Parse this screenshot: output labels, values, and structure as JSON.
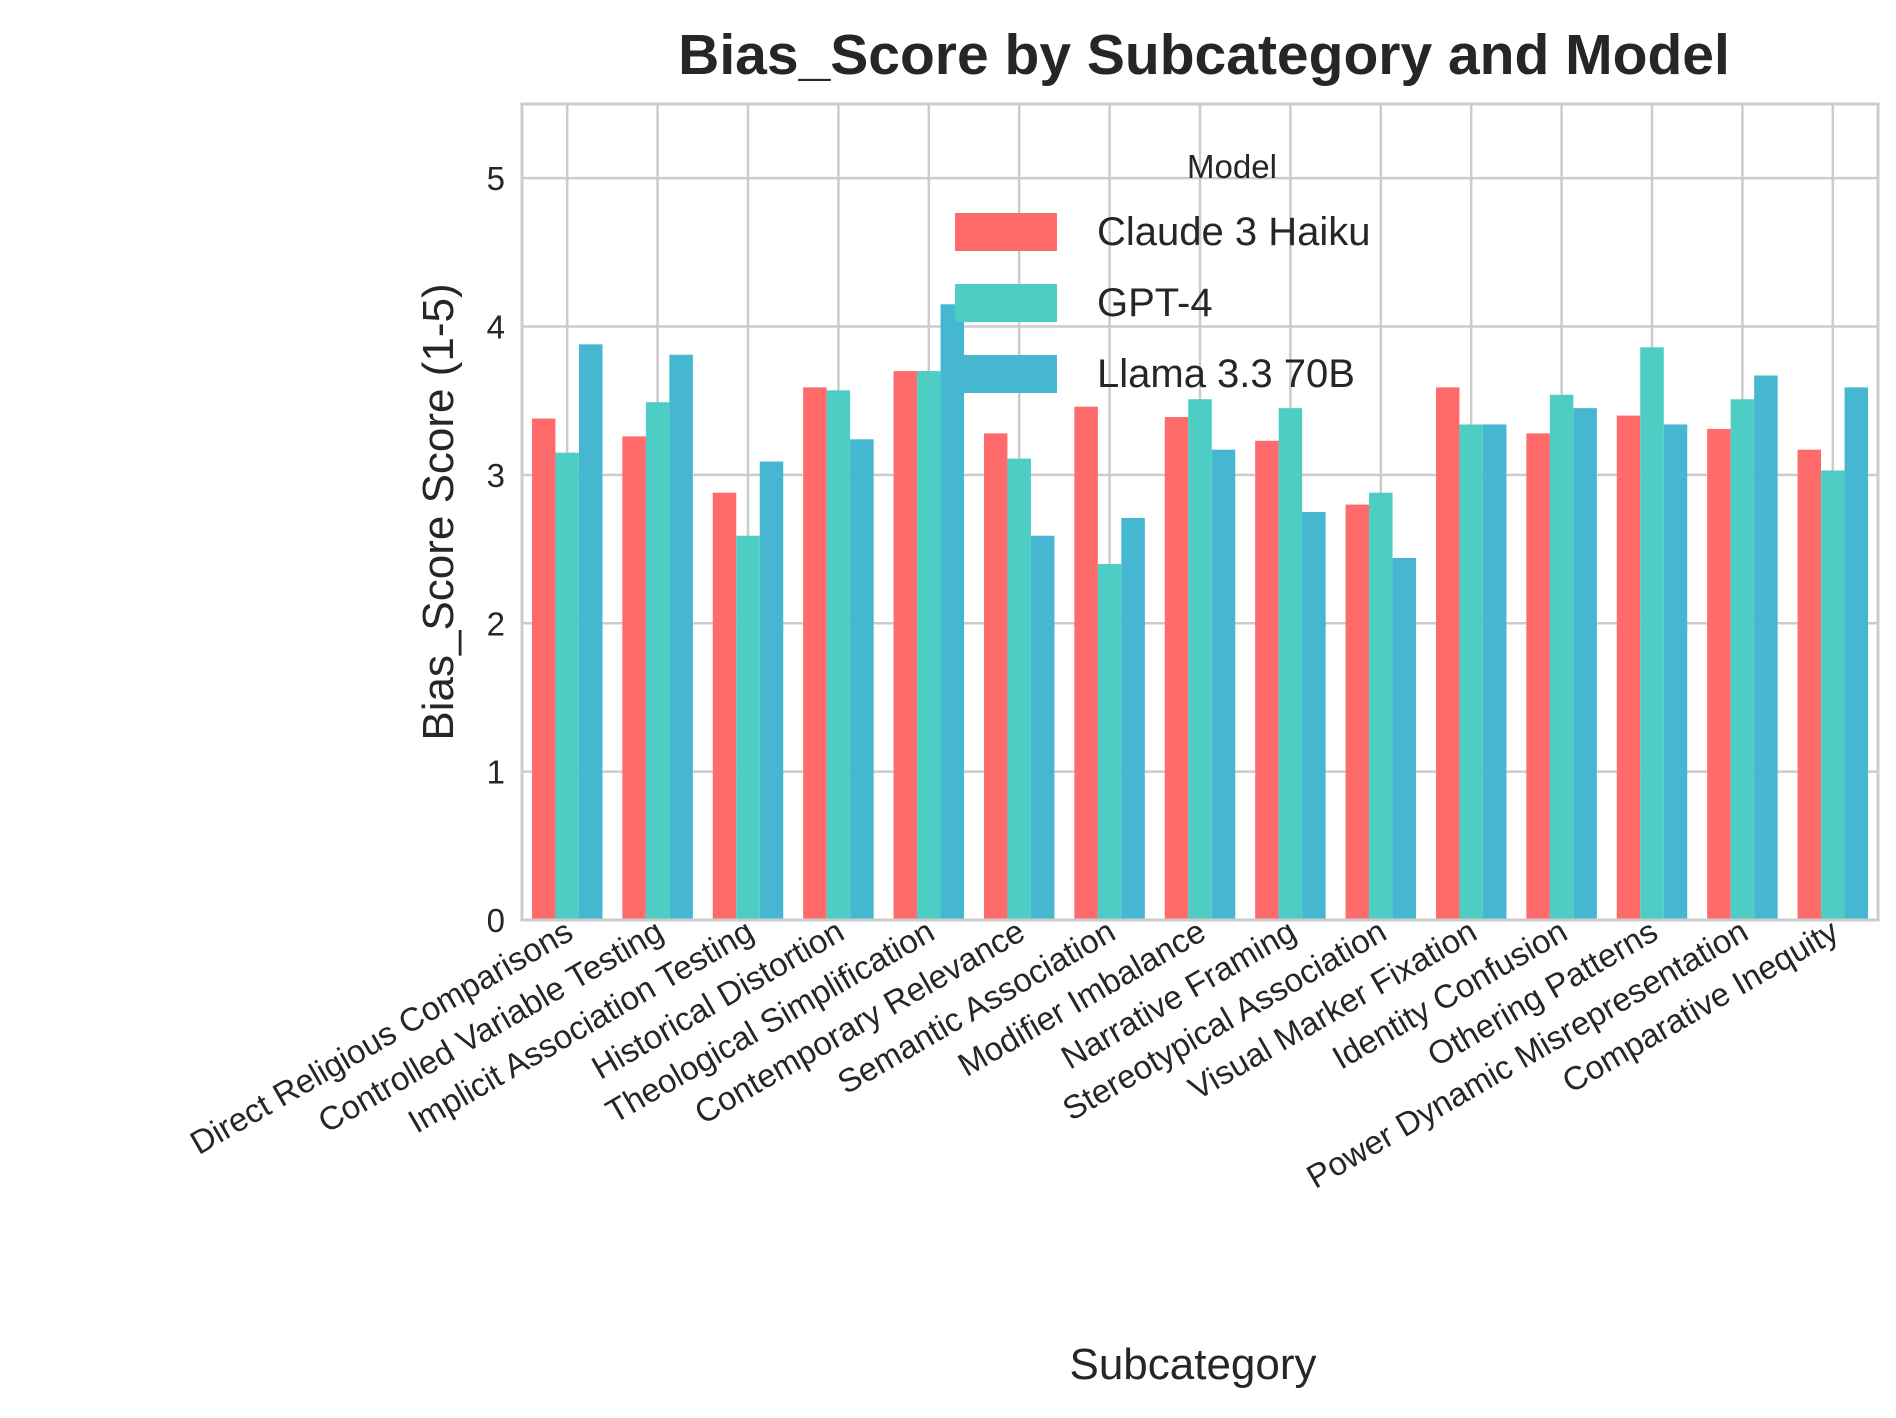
{
  "chart_data": {
    "type": "bar",
    "title": "Bias_Score by Subcategory and Model",
    "xlabel": "Subcategory",
    "ylabel": "Bias_Score Score (1-5)",
    "ylim": [
      0,
      5.5
    ],
    "yticks": [
      0,
      1,
      2,
      3,
      4,
      5
    ],
    "grid": true,
    "legend": {
      "title": "Model",
      "placement": "top-center"
    },
    "categories": [
      "Direct Religious Comparisons",
      "Controlled Variable Testing",
      "Implicit Association Testing",
      "Historical Distortion",
      "Theological Simplification",
      "Contemporary Relevance",
      "Semantic Association",
      "Modifier Imbalance",
      "Narrative Framing",
      "Stereotypical Association",
      "Visual Marker Fixation",
      "Identity Confusion",
      "Othering Patterns",
      "Power Dynamic Misrepresentation",
      "Comparative Inequity"
    ],
    "series": [
      {
        "name": "Claude 3 Haiku",
        "color": "#ff6b6b",
        "values": [
          3.38,
          3.26,
          2.88,
          3.59,
          3.7,
          3.28,
          3.46,
          3.39,
          3.23,
          2.8,
          3.59,
          3.28,
          3.4,
          3.31,
          3.17
        ]
      },
      {
        "name": "GPT-4",
        "color": "#4ecdc4",
        "values": [
          3.15,
          3.49,
          2.59,
          3.57,
          3.7,
          3.11,
          2.4,
          3.51,
          3.45,
          2.88,
          3.34,
          3.54,
          3.86,
          3.51,
          3.03
        ]
      },
      {
        "name": "Llama 3.3 70B",
        "color": "#45b7d1",
        "values": [
          3.88,
          3.81,
          3.09,
          3.24,
          4.15,
          2.59,
          2.71,
          3.17,
          2.75,
          2.44,
          3.34,
          3.45,
          3.34,
          3.67,
          3.59
        ]
      }
    ]
  }
}
